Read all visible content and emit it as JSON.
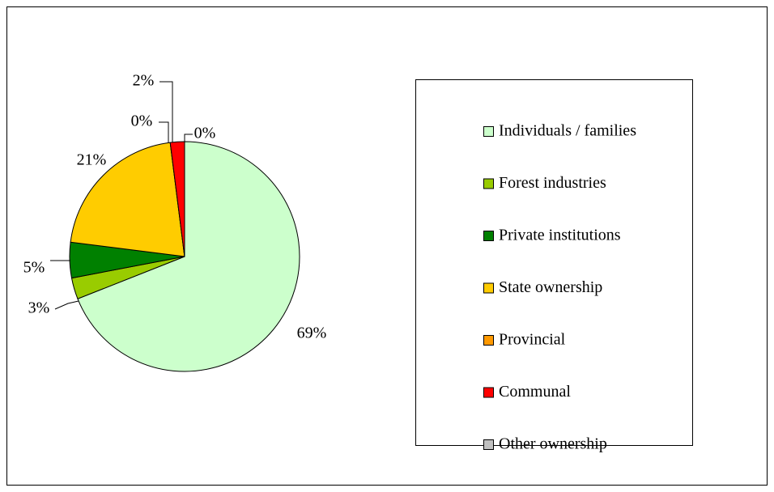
{
  "chart_data": {
    "type": "pie",
    "categories": [
      "Individuals / families",
      "Forest industries",
      "Private institutions",
      "State ownership",
      "Provincial",
      "Communal",
      "Other ownership"
    ],
    "values": [
      69,
      3,
      5,
      21,
      0,
      2,
      0
    ],
    "value_labels": [
      "69%",
      "3%",
      "5%",
      "21%",
      "0%",
      "2%",
      "0%"
    ],
    "colors": [
      "#ccffcc",
      "#99cc00",
      "#008000",
      "#ffcc00",
      "#ff9900",
      "#ff0000",
      "#c0c0c0"
    ],
    "legend": "right"
  }
}
